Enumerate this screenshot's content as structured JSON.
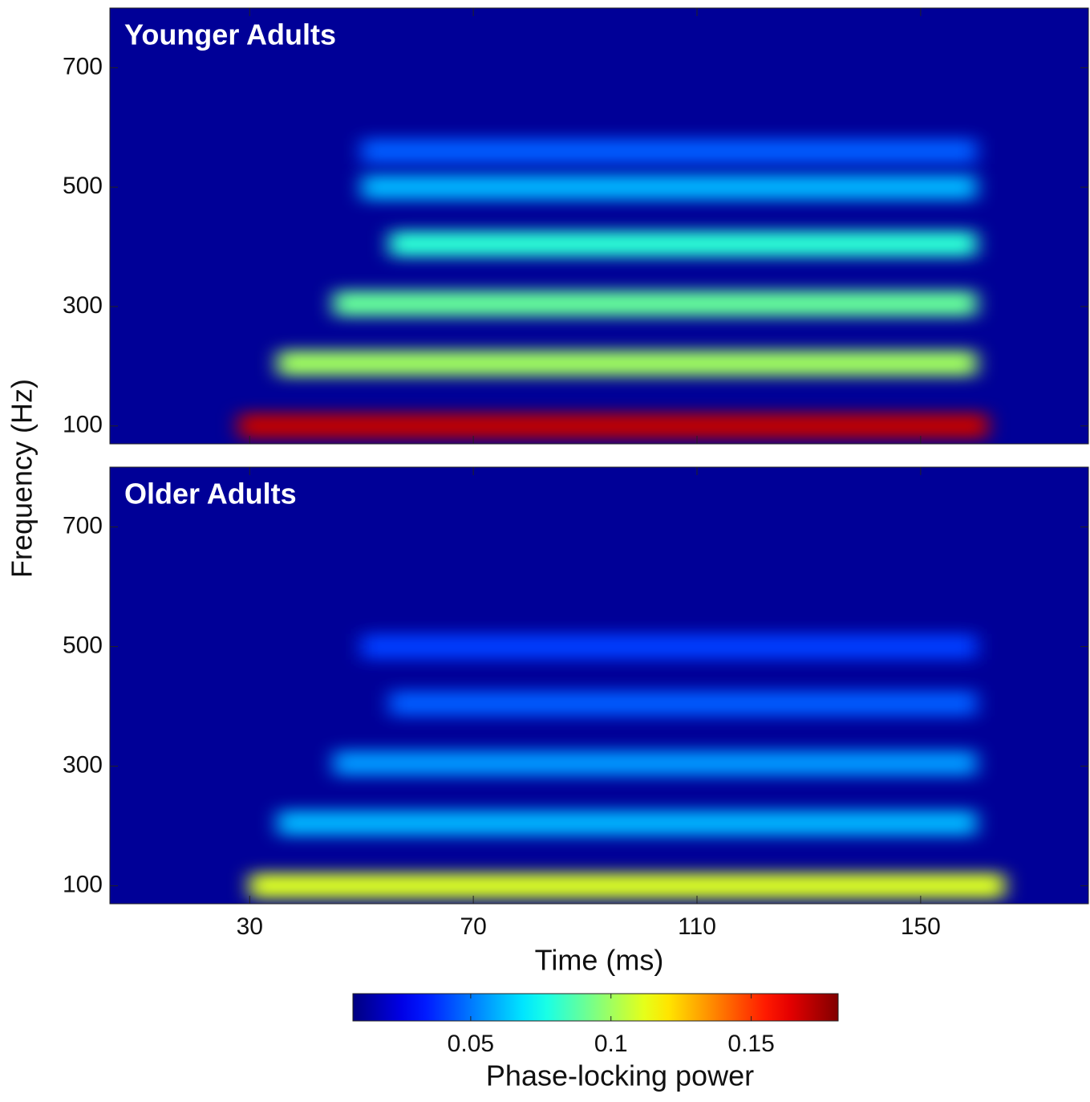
{
  "chart_data": {
    "type": "heatmap",
    "x_label": "Time (ms)",
    "y_label": "Frequency (Hz)",
    "xlim": [
      5,
      180
    ],
    "xticks": [
      30,
      70,
      110,
      150
    ],
    "ylim": [
      70,
      800
    ],
    "yticks": [
      100,
      300,
      500,
      700
    ],
    "background": 0.012,
    "colorbar": {
      "label": "Phase-locking power",
      "colormap": "jet",
      "lim": [
        0.008,
        0.181
      ],
      "ticks": [
        0.05,
        0.1,
        0.15
      ]
    },
    "panels": [
      {
        "title": "Younger Adults",
        "bands": [
          {
            "frequency": 100,
            "start": 28,
            "end": 162,
            "value": 0.17
          },
          {
            "frequency": 205,
            "start": 35,
            "end": 160,
            "value": 0.1
          },
          {
            "frequency": 305,
            "start": 45,
            "end": 160,
            "value": 0.09
          },
          {
            "frequency": 405,
            "start": 55,
            "end": 160,
            "value": 0.08
          },
          {
            "frequency": 500,
            "start": 50,
            "end": 160,
            "value": 0.06
          },
          {
            "frequency": 560,
            "start": 50,
            "end": 160,
            "value": 0.045
          }
        ]
      },
      {
        "title": "Older Adults",
        "bands": [
          {
            "frequency": 100,
            "start": 30,
            "end": 165,
            "value": 0.11
          },
          {
            "frequency": 205,
            "start": 35,
            "end": 160,
            "value": 0.06
          },
          {
            "frequency": 305,
            "start": 45,
            "end": 160,
            "value": 0.055
          },
          {
            "frequency": 405,
            "start": 55,
            "end": 160,
            "value": 0.045
          },
          {
            "frequency": 500,
            "start": 50,
            "end": 160,
            "value": 0.04
          }
        ]
      }
    ]
  }
}
